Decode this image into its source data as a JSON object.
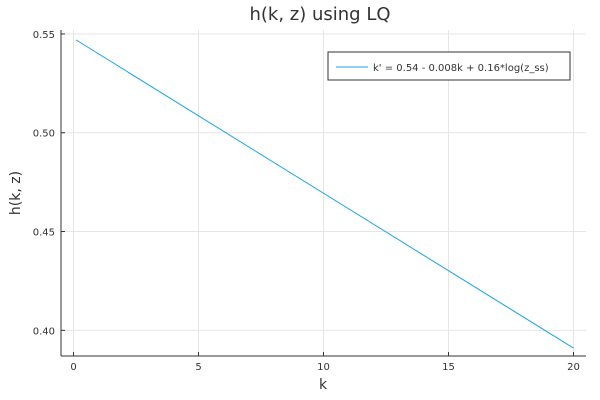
{
  "chart_data": {
    "type": "line",
    "title": "h(k, z) using LQ",
    "xlabel": "k",
    "ylabel": "h(k, z)",
    "xlim": [
      -0.5,
      20.5
    ],
    "ylim": [
      0.387,
      0.552
    ],
    "xticks": [
      0,
      5,
      10,
      15,
      20
    ],
    "xtick_labels": [
      "0",
      "5",
      "10",
      "15",
      "20"
    ],
    "yticks": [
      0.4,
      0.45,
      0.5,
      0.55
    ],
    "ytick_labels": [
      "0.40",
      "0.45",
      "0.50",
      "0.55"
    ],
    "grid": true,
    "legend_position": "top-right",
    "series": [
      {
        "name": "k' = 0.54 - 0.008k + 0.16*log(z_ss)",
        "color": "#1aa3e8",
        "x": [
          0.1,
          20
        ],
        "y": [
          0.547,
          0.391
        ]
      }
    ]
  }
}
